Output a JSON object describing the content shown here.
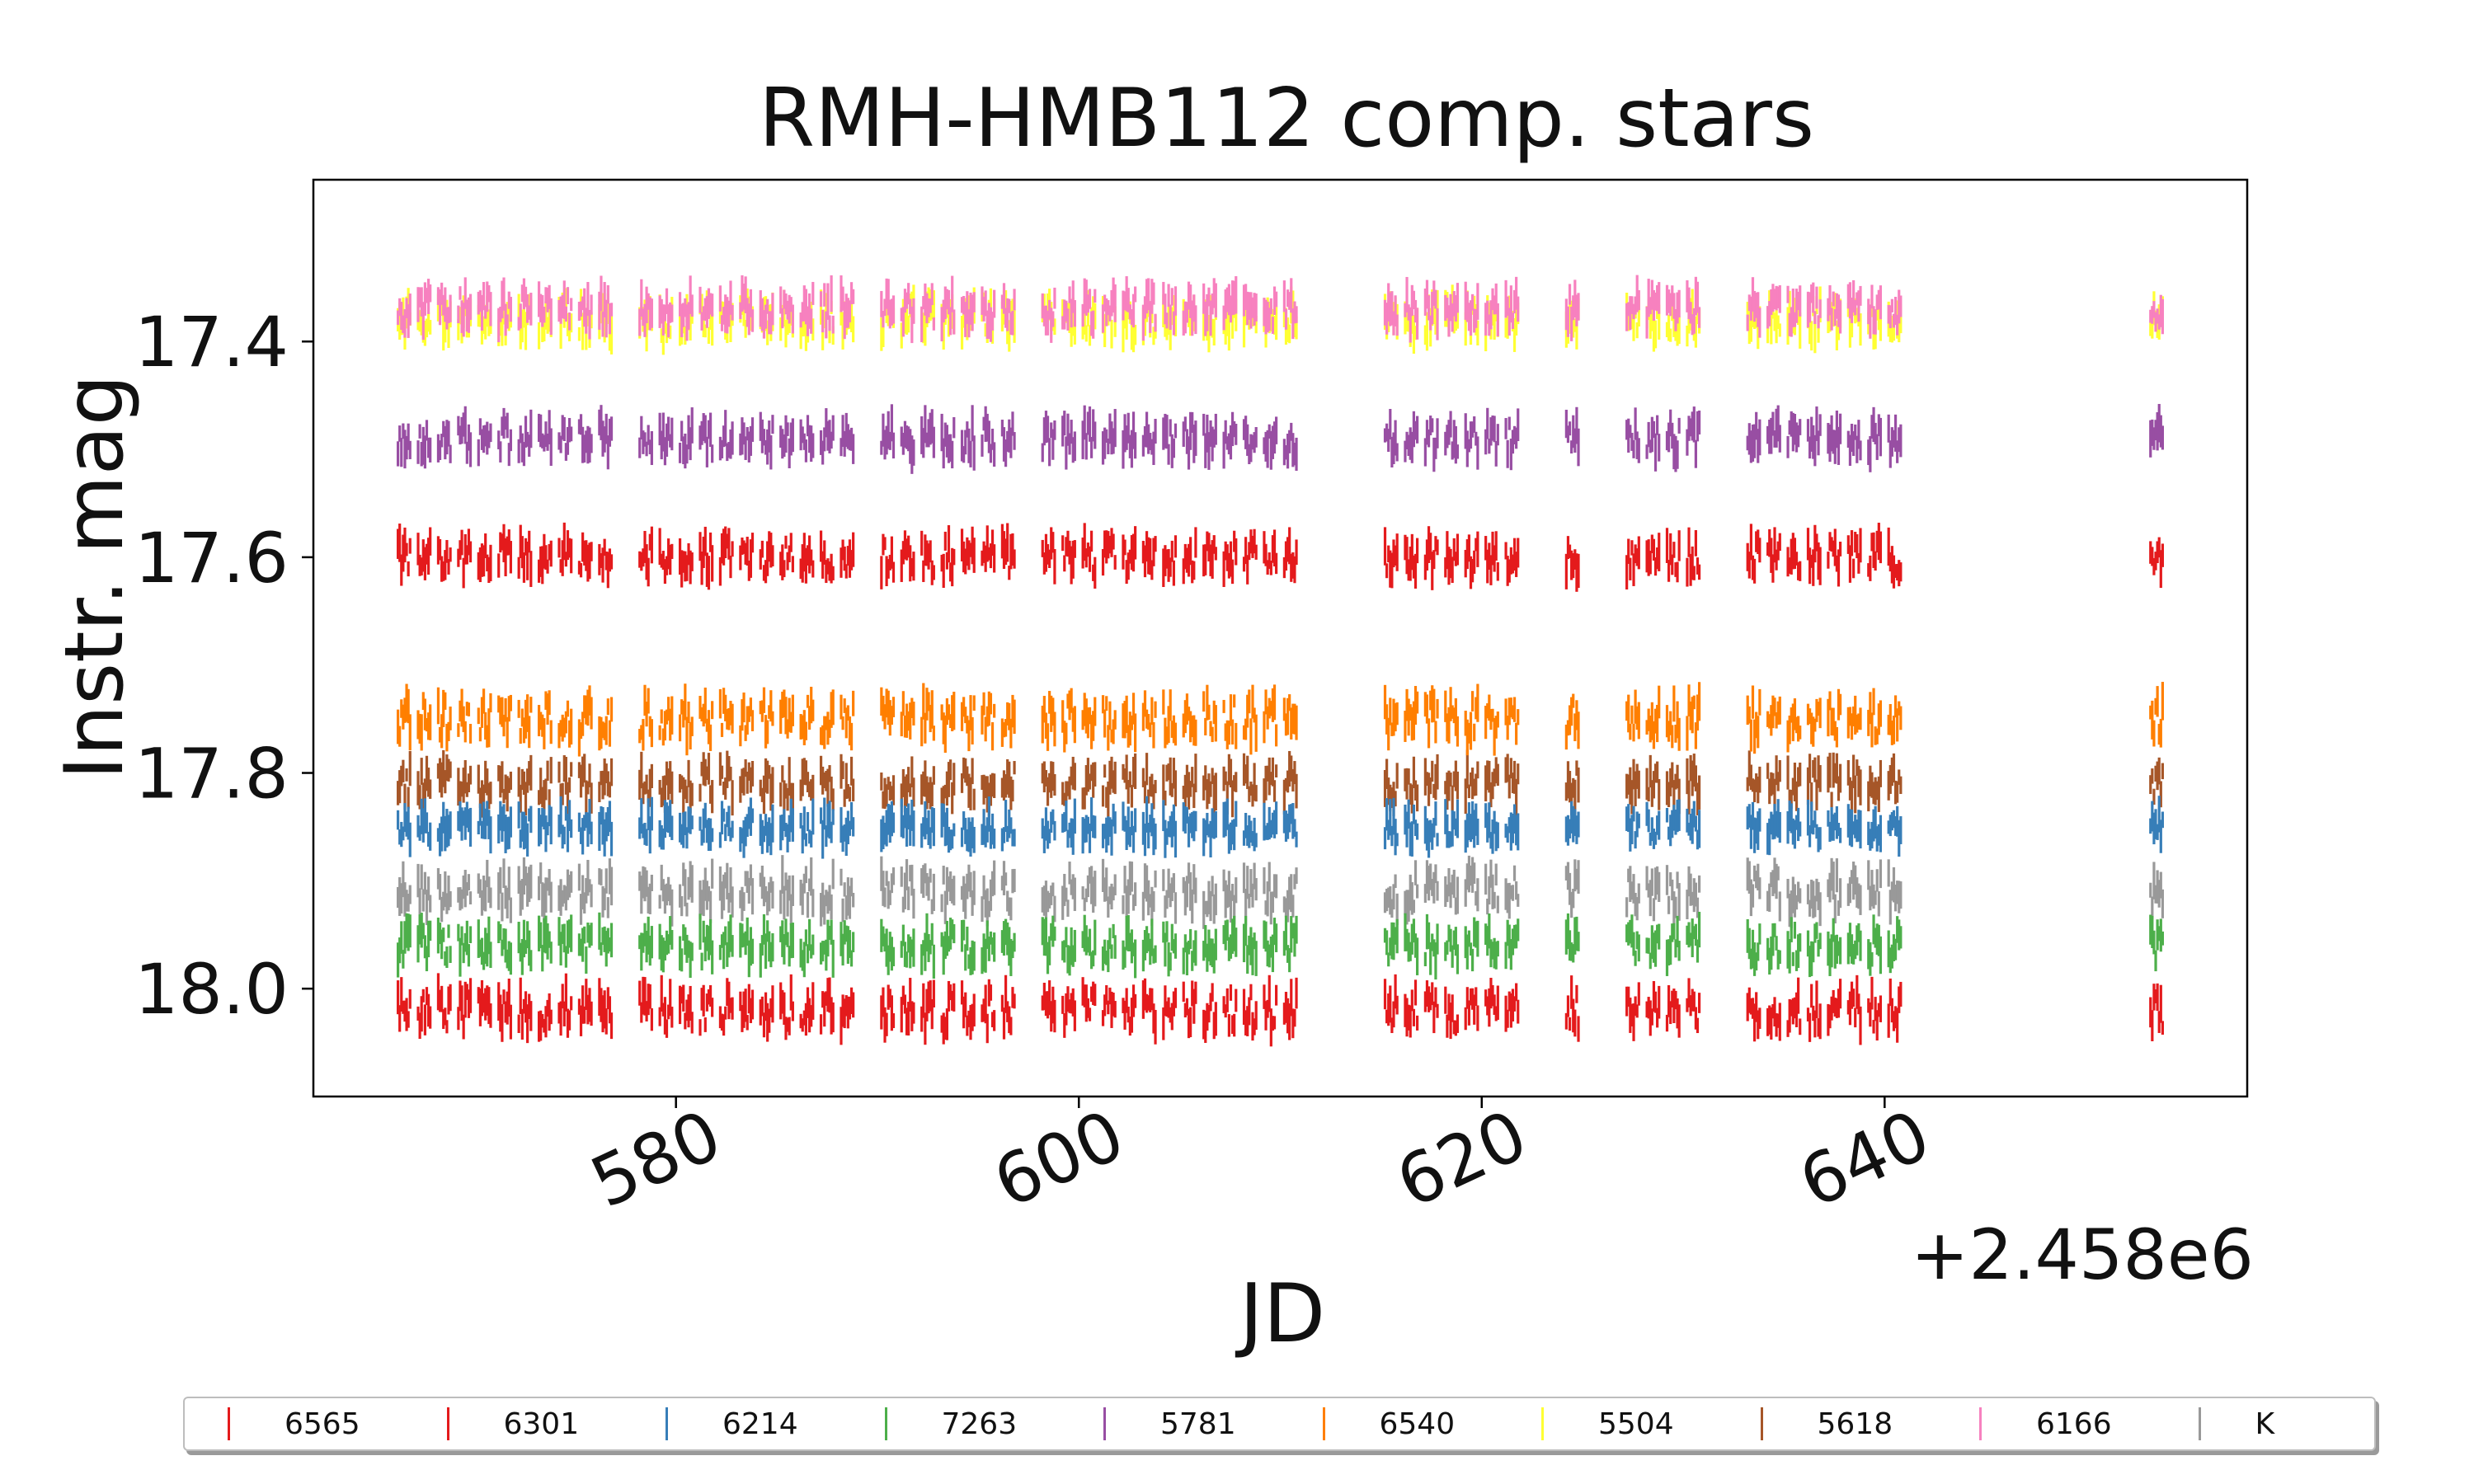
{
  "chart_data": {
    "type": "scatter",
    "title": "RMH-HMB112 comp. stars",
    "xlabel": "JD",
    "ylabel": "Instr. mag",
    "x_offset_label": "+2.458e6",
    "xlim": [
      562,
      658
    ],
    "ylim": [
      18.1,
      17.25
    ],
    "y_inverted": true,
    "xticks": [
      580,
      600,
      620,
      640
    ],
    "xtick_labels": [
      "580",
      "600",
      "620",
      "640"
    ],
    "yticks": [
      17.4,
      17.6,
      17.8,
      18.0
    ],
    "ytick_labels": [
      "17.4",
      "17.6",
      "17.8",
      "18.0"
    ],
    "grid": false,
    "legend_position": "bottom",
    "marker": "vertical error bar",
    "observation_nights_jd_offset": [
      566.5,
      567.5,
      568.5,
      569.5,
      570.5,
      571.5,
      572.5,
      573.5,
      574.5,
      575.5,
      576.5,
      578.5,
      579.5,
      580.5,
      581.5,
      582.5,
      583.5,
      584.5,
      585.5,
      586.5,
      587.5,
      588.5,
      590.5,
      591.5,
      592.5,
      593.5,
      594.5,
      595.5,
      596.5,
      598.5,
      599.5,
      600.5,
      601.5,
      602.5,
      603.5,
      604.5,
      605.5,
      606.5,
      607.5,
      608.5,
      609.5,
      610.5,
      615.5,
      616.5,
      617.5,
      618.5,
      619.5,
      620.5,
      621.5,
      624.5,
      627.5,
      628.5,
      629.5,
      630.5,
      633.5,
      634.5,
      635.5,
      636.5,
      637.5,
      638.5,
      639.5,
      640.5,
      653.5
    ],
    "series": [
      {
        "name": "6565",
        "color": "#e41a1c",
        "mean_mag": 18.02,
        "spread": 0.035
      },
      {
        "name": "6301",
        "color": "#e41a1c",
        "mean_mag": 17.6,
        "spread": 0.03
      },
      {
        "name": "6214",
        "color": "#377eb8",
        "mean_mag": 17.85,
        "spread": 0.025
      },
      {
        "name": "7263",
        "color": "#4daf4a",
        "mean_mag": 17.96,
        "spread": 0.03
      },
      {
        "name": "5781",
        "color": "#984ea3",
        "mean_mag": 17.49,
        "spread": 0.03
      },
      {
        "name": "6540",
        "color": "#ff7f00",
        "mean_mag": 17.75,
        "spread": 0.035
      },
      {
        "name": "5504",
        "color": "#ffff33",
        "mean_mag": 17.38,
        "spread": 0.03
      },
      {
        "name": "5618",
        "color": "#a65628",
        "mean_mag": 17.81,
        "spread": 0.03
      },
      {
        "name": "6166",
        "color": "#f781bf",
        "mean_mag": 17.37,
        "spread": 0.03
      },
      {
        "name": "K",
        "color": "#999999",
        "mean_mag": 17.91,
        "spread": 0.035
      }
    ]
  }
}
